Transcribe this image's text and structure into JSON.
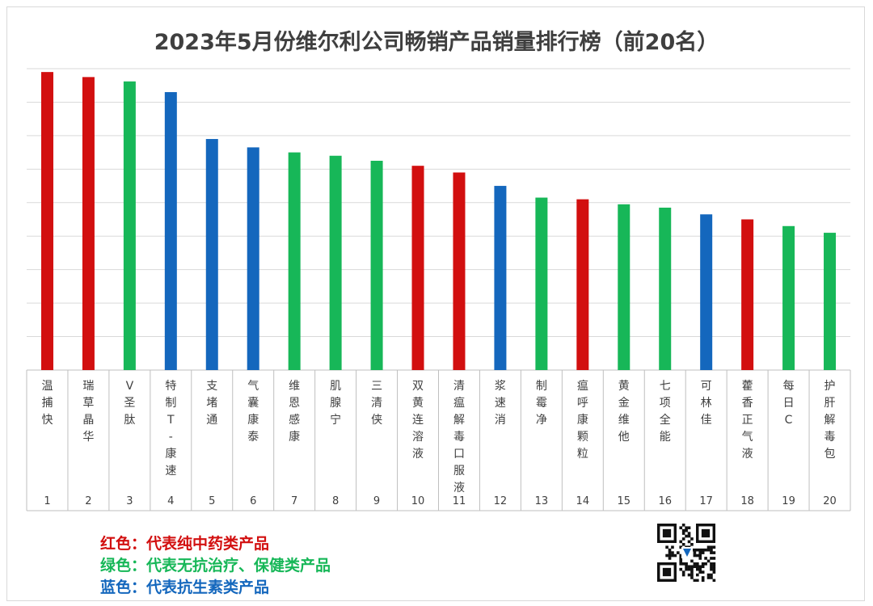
{
  "title": "2023年5月份维尔利公司畅销产品销量排行榜（前20名）",
  "colors": {
    "red": "#d20f0f",
    "green": "#17b758",
    "blue": "#1467bd"
  },
  "chart_data": {
    "type": "bar",
    "title": "2023年5月份维尔利公司畅销产品销量排行榜（前20名）",
    "y_axis_labels_shown": false,
    "ylim": [
      0,
      9
    ],
    "grid": true,
    "ranks": [
      "1",
      "2",
      "3",
      "4",
      "5",
      "6",
      "7",
      "8",
      "9",
      "10",
      "11",
      "12",
      "13",
      "14",
      "15",
      "16",
      "17",
      "18",
      "19",
      "20"
    ],
    "categories": [
      "温捕快",
      "瑞草晶华",
      "V圣肽",
      "特制T-康速",
      "支堵通",
      "气囊康泰",
      "维恩感康",
      "肌腺宁",
      "三清侠",
      "双黄连溶液",
      "清瘟解毒口服液",
      "浆速消",
      "制霉净",
      "瘟呼康颗粒",
      "黄金维他",
      "七项全能",
      "可林佳",
      "藿香正气液",
      "每日C",
      "护肝解毒包"
    ],
    "values": [
      8.9,
      8.75,
      8.62,
      8.3,
      6.9,
      6.65,
      6.5,
      6.4,
      6.25,
      6.1,
      5.9,
      5.5,
      5.15,
      5.1,
      4.95,
      4.85,
      4.65,
      4.5,
      4.3,
      4.1
    ],
    "color_groups": [
      "red",
      "red",
      "green",
      "blue",
      "blue",
      "blue",
      "green",
      "green",
      "green",
      "red",
      "red",
      "blue",
      "green",
      "red",
      "green",
      "green",
      "blue",
      "red",
      "green",
      "green"
    ]
  },
  "legend": [
    {
      "label": "红色：代表纯中药类产品",
      "color": "red"
    },
    {
      "label": "绿色：代表无抗治疗、保健类产品",
      "color": "green"
    },
    {
      "label": "蓝色：代表抗生素类产品",
      "color": "blue"
    }
  ]
}
